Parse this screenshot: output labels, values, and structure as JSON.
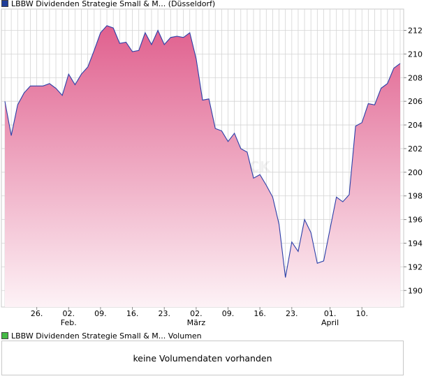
{
  "legend": {
    "price_label": "LBBW Dividenden Strategie Small & M... (Düsseldorf)",
    "price_color": "#1f3d99",
    "volume_label": "LBBW Dividenden Strategie Small & M... Volumen",
    "volume_color": "#44b944"
  },
  "volume": {
    "message": "keine Volumendaten vorhanden"
  },
  "watermark": "CK",
  "colors": {
    "line": "#2b3fa8",
    "fill_top": "#e0608e",
    "fill_bottom": "#fdf2f6",
    "grid": "#d4d4d4"
  },
  "chart_data": {
    "type": "area",
    "title": "LBBW Dividenden Strategie Small & M... (Düsseldorf)",
    "xlabel": "",
    "ylabel": "",
    "ylim": [
      188.6,
      213.8
    ],
    "y_ticks": [
      190,
      192,
      194,
      196,
      198,
      200,
      202,
      204,
      206,
      208,
      210,
      212
    ],
    "x_ticks": [
      {
        "label": "26.",
        "sub": "",
        "index": 5
      },
      {
        "label": "02.",
        "sub": "Feb.",
        "index": 10
      },
      {
        "label": "09.",
        "sub": "",
        "index": 15
      },
      {
        "label": "16.",
        "sub": "",
        "index": 20
      },
      {
        "label": "23.",
        "sub": "",
        "index": 25
      },
      {
        "label": "02.",
        "sub": "März",
        "index": 30
      },
      {
        "label": "09.",
        "sub": "",
        "index": 35
      },
      {
        "label": "16.",
        "sub": "",
        "index": 40
      },
      {
        "label": "23.",
        "sub": "",
        "index": 45
      },
      {
        "label": "01.",
        "sub": "April",
        "index": 51
      },
      {
        "label": "10.",
        "sub": "",
        "index": 56
      }
    ],
    "series": [
      {
        "name": "LBBW Dividenden Strategie Small & M... (Düsseldorf)",
        "values": [
          206.0,
          203.1,
          205.7,
          206.7,
          207.3,
          207.3,
          207.3,
          207.5,
          207.1,
          206.5,
          208.3,
          207.4,
          208.3,
          208.9,
          210.3,
          211.8,
          212.4,
          212.2,
          210.9,
          211.0,
          210.2,
          210.3,
          211.8,
          210.8,
          212.0,
          210.8,
          211.4,
          211.5,
          211.4,
          211.8,
          209.6,
          206.1,
          206.2,
          203.7,
          203.5,
          202.6,
          203.3,
          202.0,
          201.7,
          199.5,
          199.8,
          198.9,
          197.9,
          195.6,
          191.1,
          194.1,
          193.3,
          196.0,
          194.9,
          192.3,
          192.5,
          195.2,
          197.9,
          197.5,
          198.1,
          203.9,
          204.2,
          205.8,
          205.7,
          207.1,
          207.5,
          208.8,
          209.2
        ]
      }
    ]
  }
}
